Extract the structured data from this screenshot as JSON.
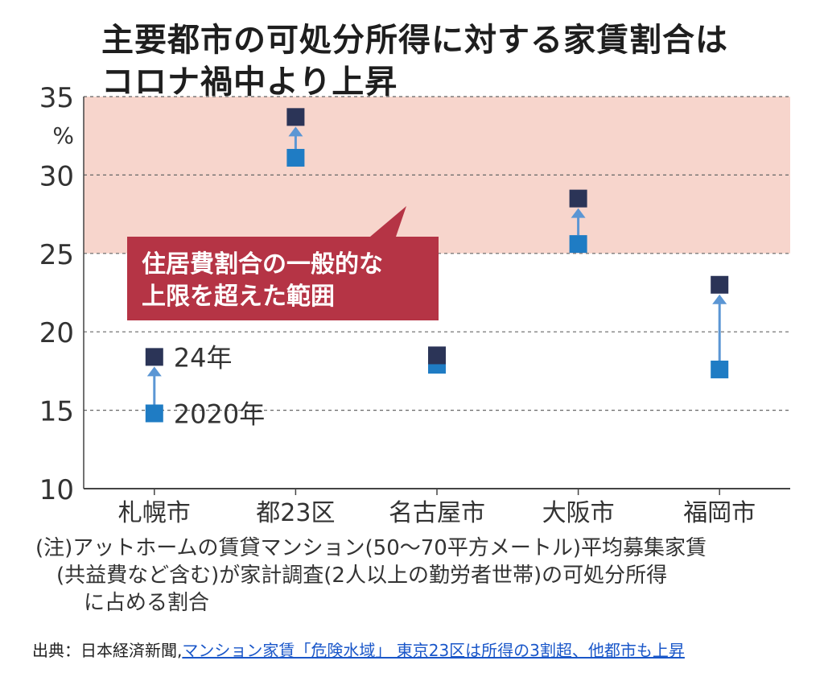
{
  "title_lines": [
    "主要都市の可処分所得に対する家賃割合は",
    "コロナ禍中より上昇"
  ],
  "note_lines": [
    "(注)アットホームの賃貸マンション(50〜70平方メートル)平均募集家賃",
    "(共益費など含む)が家計調査(2人以上の勤労者世帯)の可処分所得",
    "に占める割合"
  ],
  "source": {
    "prefix": "出典：日本経済新聞,",
    "link_text": "マンション家賃「危険水域」 東京23区は所得の3割超、他都市も上昇"
  },
  "chart_data": {
    "type": "scatter",
    "categories": [
      "札幌市",
      "都23区",
      "名古屋市",
      "大阪市",
      "福岡市"
    ],
    "series": [
      {
        "name": "2020年",
        "values": [
          14.8,
          31.1,
          17.9,
          25.6,
          17.6
        ],
        "color": "#1f7cc4"
      },
      {
        "name": "24年",
        "values": [
          18.4,
          33.7,
          18.5,
          28.5,
          23.0
        ],
        "color": "#2b3457"
      }
    ],
    "ylim": [
      10,
      35
    ],
    "yticks": [
      10,
      15,
      20,
      25,
      30,
      35
    ],
    "yunit": "%",
    "grid": true,
    "shaded_band": {
      "from": 25,
      "to": 35,
      "color": "#f7d5cc"
    },
    "arrow_color": "#5b96d4",
    "annotation": {
      "lines": [
        "住居費割合の一般的な",
        "上限を超えた範囲"
      ],
      "color": "#b53445"
    }
  }
}
